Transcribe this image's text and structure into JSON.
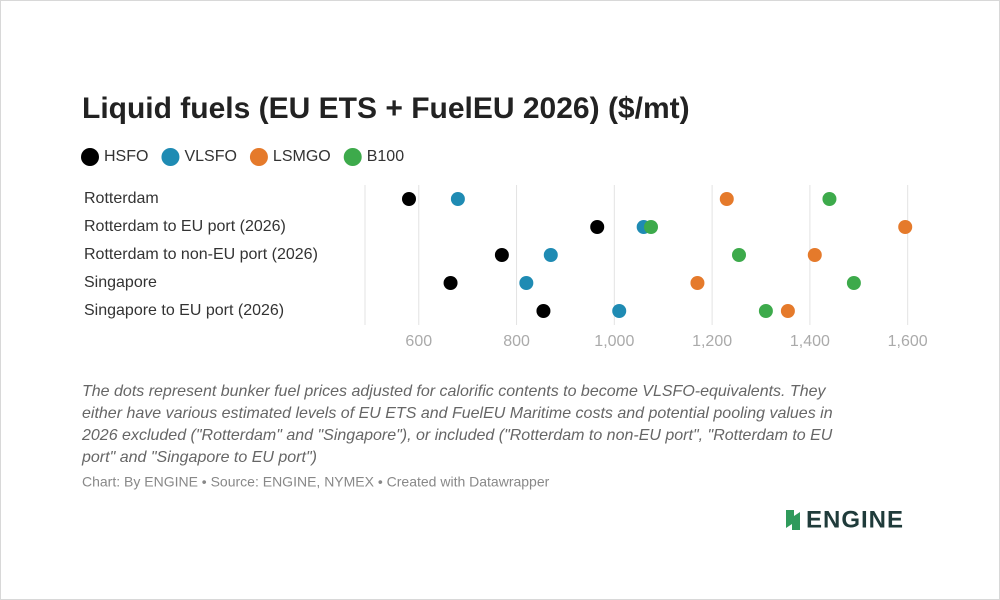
{
  "chart_data": {
    "type": "dot",
    "title": "Liquid fuels (EU ETS + FuelEU 2026) ($/mt)",
    "categories": [
      "Rotterdam",
      "Rotterdam to EU port (2026)",
      "Rotterdam to non-EU port (2026)",
      "Singapore",
      "Singapore to EU port (2026)"
    ],
    "series": [
      {
        "name": "HSFO",
        "color": "#000000",
        "values": [
          580,
          965,
          770,
          665,
          855
        ]
      },
      {
        "name": "VLSFO",
        "color": "#1f8bb3",
        "values": [
          680,
          1060,
          870,
          820,
          1010
        ]
      },
      {
        "name": "LSMGO",
        "color": "#e57a2b",
        "values": [
          1230,
          1595,
          1410,
          1170,
          1355
        ]
      },
      {
        "name": "B100",
        "color": "#3daa4b",
        "values": [
          1440,
          1075,
          1255,
          1490,
          1310
        ]
      }
    ],
    "xlim": [
      490,
      1615
    ],
    "xticks": [
      600,
      800,
      {
        "value": 1000,
        "label": "1,000"
      },
      {
        "value": 1200,
        "label": "1,200"
      },
      {
        "value": 1400,
        "label": "1,400"
      },
      {
        "value": 1600,
        "label": "1,600"
      }
    ],
    "grid": true,
    "caption": [
      "The dots represent bunker fuel prices adjusted for calorific contents to become VLSFO-equivalents. They",
      "either have various estimated levels of EU ETS and FuelEU Maritime costs and potential pooling values in",
      "2026 excluded (\"Rotterdam\" and \"Singapore\"), or included (\"Rotterdam to non-EU port\", \"Rotterdam to EU",
      "port\" and \"Singapore to EU port\")"
    ],
    "source": "Chart: By ENGINE • Source: ENGINE, NYMEX • Created with Datawrapper",
    "brand": "ENGINE"
  }
}
